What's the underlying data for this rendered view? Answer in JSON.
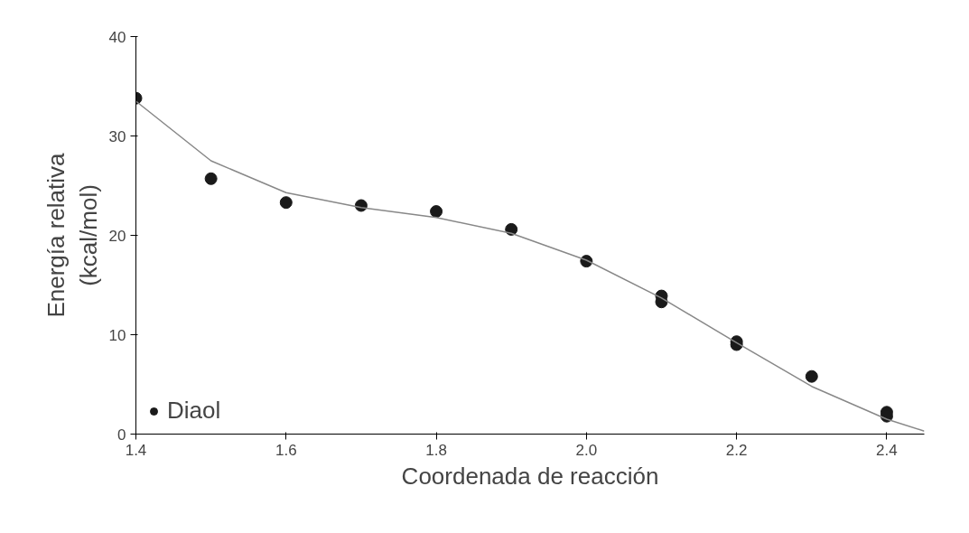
{
  "chart_data": {
    "type": "scatter",
    "xlabel": "Coordenada de reacción",
    "ylabel": "Energía relativa\n(kcal/mol)",
    "xlim": [
      1.4,
      2.45
    ],
    "ylim": [
      0,
      40
    ],
    "xticks": [
      {
        "value": 1.4,
        "label": "1.4"
      },
      {
        "value": 1.6,
        "label": "1.6"
      },
      {
        "value": 1.8,
        "label": "1.8"
      },
      {
        "value": 2.0,
        "label": "2.0"
      },
      {
        "value": 2.2,
        "label": "2.2"
      },
      {
        "value": 2.4,
        "label": "2.4"
      }
    ],
    "yticks": [
      0,
      10,
      20,
      30,
      40
    ],
    "grid": false,
    "legend": "bottom left",
    "series": [
      {
        "name": "Diaol",
        "color": "#1a1a1a",
        "marker": "circle",
        "x": [
          1.4,
          1.5,
          1.6,
          1.7,
          1.8,
          1.9,
          2.0,
          2.1,
          2.1,
          2.2,
          2.2,
          2.3,
          2.4,
          2.4
        ],
        "values": [
          33.8,
          25.7,
          23.3,
          23.0,
          22.4,
          20.6,
          17.4,
          13.9,
          13.3,
          9.3,
          9.0,
          5.8,
          2.2,
          1.8
        ]
      },
      {
        "type": "line",
        "color": "#888888",
        "line_style": "solid",
        "marker": "none",
        "x": [
          1.4,
          1.5,
          1.6,
          1.7,
          1.8,
          1.9,
          2.0,
          2.1,
          2.2,
          2.3,
          2.4,
          2.45
        ],
        "values": [
          33.5,
          27.5,
          24.3,
          22.8,
          21.8,
          20.2,
          17.5,
          13.7,
          9.2,
          4.8,
          1.5,
          0.3
        ]
      }
    ]
  }
}
